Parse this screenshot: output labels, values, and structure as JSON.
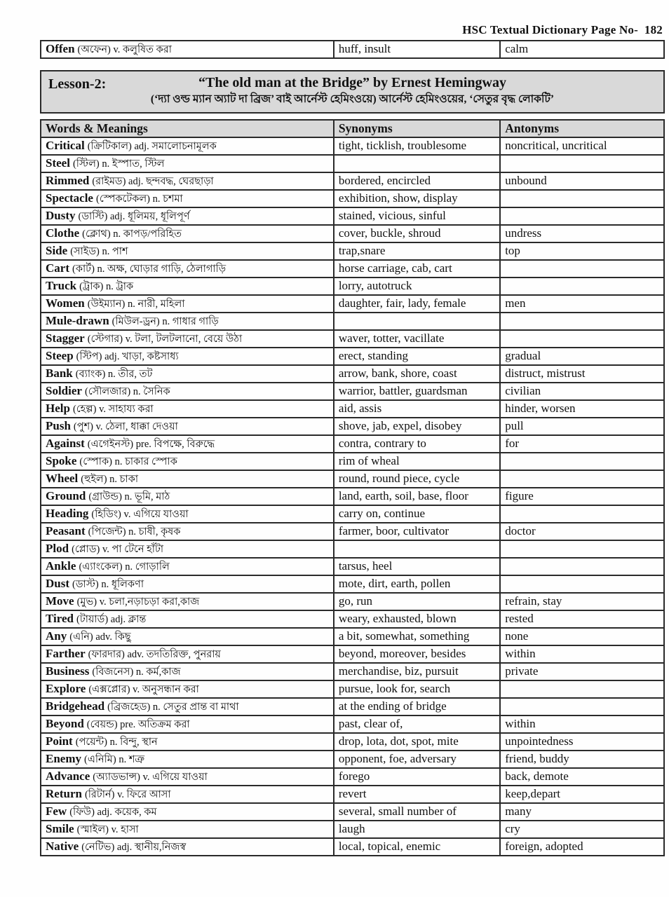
{
  "page": {
    "header": "HSC Textual Dictionary Page No-  182"
  },
  "top_row": {
    "word": "Offen",
    "meaning": "(অফেন) v. কলুষিত করা",
    "synonyms": "huff, insult",
    "antonyms": "calm"
  },
  "lesson": {
    "label": "Lesson-2:",
    "title": "“The old man at the Bridge” by Ernest Hemingway",
    "subtitle": "(‘দ্যা ওল্ড ম্যান অ্যাট দা ব্রিজ’ বাই আর্নেস্ট হেমিংওয়ে) আর্নেস্ট হেমিংওয়ের, ‘সেতুর বৃদ্ধ লোকটি’"
  },
  "table": {
    "headers": [
      "Words & Meanings",
      "Synonyms",
      "Antonyms"
    ],
    "rows": [
      {
        "word": "Critical",
        "meaning": "(ক্রিটিকাল) adj. সমালোচনামূলক",
        "synonyms": "tight, ticklish, troublesome",
        "antonyms": "noncritical, uncritical"
      },
      {
        "word": "Steel",
        "meaning": "(স্টিল) n. ইস্পাত, স্টিল",
        "synonyms": "",
        "antonyms": ""
      },
      {
        "word": "Rimmed",
        "meaning": "(রাইমড) adj. ছন্দবদ্ধ, ঘেরছাড়া",
        "synonyms": "bordered, encircled",
        "antonyms": "unbound"
      },
      {
        "word": "Spectacle",
        "meaning": "(স্পেকটেকল) n. চশমা",
        "synonyms": "exhibition, show, display",
        "antonyms": ""
      },
      {
        "word": "Dusty",
        "meaning": "(ডাস্টি) adj. ধূলিময়, ধূলিপূর্ণ",
        "synonyms": "stained, vicious, sinful",
        "antonyms": ""
      },
      {
        "word": "Clothe",
        "meaning": "(ক্লোথ) n. কাপড়/পরিহিত",
        "synonyms": "cover, buckle, shroud",
        "antonyms": "undress"
      },
      {
        "word": "Side",
        "meaning": "(সাইড) n. পাশ",
        "synonyms": "trap,snare",
        "antonyms": "top"
      },
      {
        "word": "Cart",
        "meaning": "(কার্ট) n. অক্ষ, ঘোড়ার গাড়ি, ঠেলাগাড়ি",
        "synonyms": "horse carriage, cab, cart",
        "antonyms": ""
      },
      {
        "word": "Truck",
        "meaning": "(ট্রাক) n. ট্রাক",
        "synonyms": "lorry, autotruck",
        "antonyms": ""
      },
      {
        "word": "Women",
        "meaning": "(উইম্যান) n. নারী, মহিলা",
        "synonyms": "daughter, fair, lady, female",
        "antonyms": "men"
      },
      {
        "word": "Mule-drawn",
        "meaning": "(মিউল-ড্রন) n. গাধার গাড়ি",
        "synonyms": "",
        "antonyms": ""
      },
      {
        "word": "Stagger",
        "meaning": "(স্টেগার) v. টলা, টলটলানো, বেয়ে উঠা",
        "synonyms": "waver, totter, vacillate",
        "antonyms": ""
      },
      {
        "word": "Steep",
        "meaning": "(স্টিপ) adj. খাড়া, কষ্টসাধ্য",
        "synonyms": "erect, standing",
        "antonyms": "gradual"
      },
      {
        "word": "Bank",
        "meaning": "(ব্যাংক) n. তীর, তট",
        "synonyms": "arrow, bank, shore, coast",
        "antonyms": "distruct, mistrust"
      },
      {
        "word": "Soldier",
        "meaning": "(সৌলজার) n. সৈনিক",
        "synonyms": "warrior, battler, guardsman",
        "antonyms": "civilian"
      },
      {
        "word": "Help",
        "meaning": "(হেল্প) v. সাহায্য করা",
        "synonyms": "aid, assis",
        "antonyms": "hinder, worsen"
      },
      {
        "word": "Push",
        "meaning": "(পুশ) v. ঠেলা, ধাক্কা দেওয়া",
        "synonyms": "shove, jab, expel, disobey",
        "antonyms": "pull"
      },
      {
        "word": "Against",
        "meaning": "(এগেইনস্ট) pre. বিপক্ষে, বিরুদ্ধে",
        "synonyms": "contra, contrary to",
        "antonyms": "for"
      },
      {
        "word": "Spoke",
        "meaning": "(স্পোক) n. চাকার স্পোক",
        "synonyms": "rim of wheal",
        "antonyms": ""
      },
      {
        "word": "Wheel",
        "meaning": "(হুইল) n. চাকা",
        "synonyms": "round, round piece, cycle",
        "antonyms": ""
      },
      {
        "word": "Ground",
        "meaning": "(গ্রাউন্ড) n. ভূমি, মাঠ",
        "synonyms": "land, earth, soil, base, floor",
        "antonyms": "figure"
      },
      {
        "word": "Heading",
        "meaning": "(হিডিং) v. এগিয়ে যাওয়া",
        "synonyms": "carry on, continue",
        "antonyms": ""
      },
      {
        "word": "Peasant",
        "meaning": "(পিজেন্ট) n. চাষী, কৃষক",
        "synonyms": "farmer, boor, cultivator",
        "antonyms": "doctor"
      },
      {
        "word": "Plod",
        "meaning": "(প্লোড) v. পা টেনে হাঁটা",
        "synonyms": "",
        "antonyms": ""
      },
      {
        "word": "Ankle",
        "meaning": "(এ্যাংকেল) n. গোড়ালি",
        "synonyms": "tarsus, heel",
        "antonyms": ""
      },
      {
        "word": "Dust",
        "meaning": "(ডাস্ট) n. ধূলিকণা",
        "synonyms": "mote, dirt, earth, pollen",
        "antonyms": ""
      },
      {
        "word": "Move",
        "meaning": "(মুভ) v. চলা,নড়াচড়া করা,কাজ",
        "synonyms": "go, run",
        "antonyms": "refrain, stay"
      },
      {
        "word": "Tired",
        "meaning": "(টায়ার্ড) adj. ক্লান্ত",
        "synonyms": "weary, exhausted, blown",
        "antonyms": "rested"
      },
      {
        "word": "Any",
        "meaning": "(এনি) adv. কিছু",
        "synonyms": "a bit, somewhat,  something",
        "antonyms": "none"
      },
      {
        "word": "Farther",
        "meaning": "(ফারদার) adv. তদতিরিক্ত, পুনরায়",
        "synonyms": "beyond, moreover, besides",
        "antonyms": "within"
      },
      {
        "word": "Business",
        "meaning": "(বিজনেস) n. কর্ম,কাজ",
        "synonyms": "merchandise, biz, pursuit",
        "antonyms": "private"
      },
      {
        "word": "Explore",
        "meaning": "(এক্সপ্লোর) v. অনুসন্ধান করা",
        "synonyms": "pursue, look for, search",
        "antonyms": ""
      },
      {
        "word": "Bridgehead",
        "meaning": "(ব্রিজহেড) n. সেতুর প্রান্ত বা মাথা",
        "synonyms": "at the ending of bridge",
        "antonyms": ""
      },
      {
        "word": "Beyond",
        "meaning": "(বেয়ন্ড) pre. অতিক্রম করা",
        "synonyms": "past, clear of,",
        "antonyms": "within"
      },
      {
        "word": "Point",
        "meaning": "(পয়েন্ট) n. বিন্দু, স্থান",
        "synonyms": "drop, lota, dot, spot, mite",
        "antonyms": "unpointedness"
      },
      {
        "word": "Enemy",
        "meaning": "(এনিমি) n. শত্রু",
        "synonyms": "opponent, foe, adversary",
        "antonyms": "friend, buddy"
      },
      {
        "word": "Advance",
        "meaning": "(অ্যাডভান্স) v. এগিয়ে যাওয়া",
        "synonyms": "forego",
        "antonyms": "back, demote"
      },
      {
        "word": "Return",
        "meaning": "(রিটার্ন) v. ফিরে আসা",
        "synonyms": "revert",
        "antonyms": "keep,depart"
      },
      {
        "word": "Few",
        "meaning": "(ফিউ) adj. কয়েক, কম",
        "synonyms": "several, small number of",
        "antonyms": "many"
      },
      {
        "word": "Smile",
        "meaning": "(স্মাইল) v. হাসা",
        "synonyms": "laugh",
        "antonyms": "cry"
      },
      {
        "word": "Native",
        "meaning": "(নেটিভ) adj. স্থানীয়,নিজস্ব",
        "synonyms": "local, topical, enemic",
        "antonyms": "foreign, adopted"
      }
    ]
  }
}
